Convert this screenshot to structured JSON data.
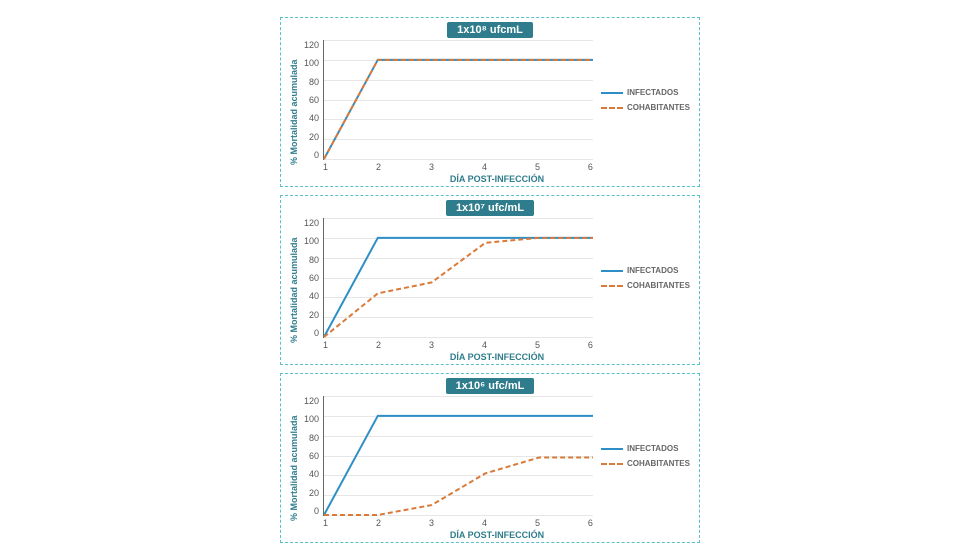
{
  "global": {
    "ylabel": "% Mortalidad acumulada",
    "xlabel": "DÍA POST-INFECCIÓN",
    "yticks": [
      120,
      100,
      80,
      60,
      40,
      20,
      0
    ],
    "xticks": [
      1,
      2,
      3,
      4,
      5,
      6
    ],
    "ylim": [
      0,
      120
    ],
    "xlim": [
      1,
      6
    ],
    "grid_color": "#e6e6e6",
    "axis_color": "#666666",
    "panel_border_color": "#5bbfc9",
    "title_bg": "#2f7d8c",
    "title_color": "#ffffff",
    "label_color": "#2f7d8c",
    "legend": {
      "infectados": {
        "label": "INFECTADOS",
        "color": "#2e8fc6",
        "dash": "none",
        "width": 2
      },
      "cohabitantes": {
        "label": "COHABITANTES",
        "color": "#d97a3a",
        "dash": "5,3",
        "width": 2
      }
    }
  },
  "charts": [
    {
      "title": "1x10⁸ ufcmL",
      "series": {
        "infectados": {
          "x": [
            1,
            2,
            3,
            4,
            5,
            6
          ],
          "y": [
            0,
            100,
            100,
            100,
            100,
            100
          ]
        },
        "cohabitantes": {
          "x": [
            1,
            2,
            3,
            4,
            5,
            6
          ],
          "y": [
            0,
            100,
            100,
            100,
            100,
            100
          ]
        }
      }
    },
    {
      "title": "1x10⁷ ufc/mL",
      "series": {
        "infectados": {
          "x": [
            1,
            2,
            3,
            4,
            5,
            6
          ],
          "y": [
            0,
            100,
            100,
            100,
            100,
            100
          ]
        },
        "cohabitantes": {
          "x": [
            1,
            2,
            3,
            4,
            5,
            6
          ],
          "y": [
            0,
            44,
            55,
            95,
            100,
            100
          ]
        }
      }
    },
    {
      "title": "1x10⁶ ufc/mL",
      "series": {
        "infectados": {
          "x": [
            1,
            2,
            3,
            4,
            5,
            6
          ],
          "y": [
            0,
            100,
            100,
            100,
            100,
            100
          ]
        },
        "cohabitantes": {
          "x": [
            1,
            2,
            3,
            4,
            5,
            6
          ],
          "y": [
            0,
            0,
            10,
            42,
            58,
            58
          ]
        }
      }
    }
  ]
}
